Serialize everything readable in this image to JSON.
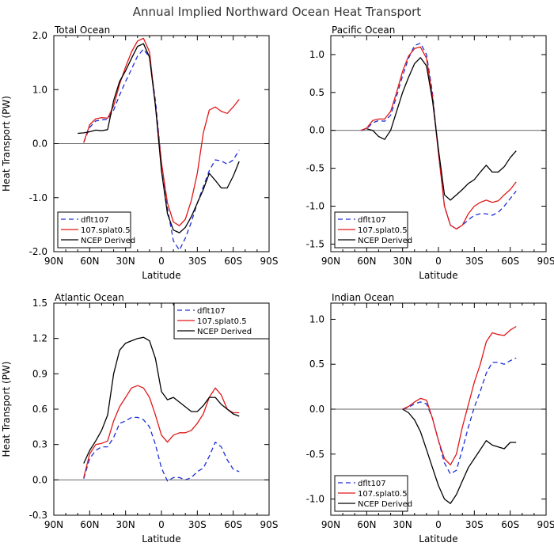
{
  "figure": {
    "title": "Annual Implied Northward Ocean Heat Transport"
  },
  "colors": {
    "dflt107": "#1f2fd8",
    "splat": "#e01818",
    "ncep": "#000000",
    "zero_line": "#666666"
  },
  "chart_data": [
    {
      "type": "line",
      "title": "Total Ocean",
      "xlabel": "Latitude",
      "ylabel": "Heat Transport (PW)",
      "xlim": [
        90,
        -90
      ],
      "ylim": [
        -2.0,
        2.0
      ],
      "x_ticks": [
        90,
        60,
        30,
        0,
        -30,
        -60,
        -90
      ],
      "x_tick_labels": [
        "90N",
        "60N",
        "30N",
        "0",
        "30S",
        "60S",
        "90S"
      ],
      "y_ticks": [
        -2.0,
        -1.0,
        0.0,
        1.0,
        2.0
      ],
      "y_tick_labels": [
        "-2.0",
        "-1.0",
        "0.0",
        "1.0",
        "2.0"
      ],
      "reference_line": 0,
      "legend": {
        "placement": "bottom-left"
      },
      "series": [
        {
          "name": "dflt107",
          "style": "dashed",
          "x": [
            65,
            60,
            55,
            50,
            45,
            40,
            35,
            30,
            25,
            20,
            15,
            10,
            5,
            0,
            -5,
            -10,
            -15,
            -20,
            -25,
            -30,
            -35,
            -40,
            -45,
            -50,
            -55,
            -60,
            -65
          ],
          "y": [
            0.02,
            0.3,
            0.42,
            0.44,
            0.45,
            0.62,
            0.9,
            1.15,
            1.38,
            1.62,
            1.75,
            1.6,
            0.8,
            -0.35,
            -1.2,
            -1.8,
            -1.97,
            -1.75,
            -1.45,
            -1.1,
            -0.8,
            -0.5,
            -0.3,
            -0.32,
            -0.38,
            -0.3,
            -0.12
          ]
        },
        {
          "name": "107.splat0.5",
          "style": "solid",
          "x": [
            65,
            60,
            55,
            50,
            45,
            40,
            35,
            30,
            25,
            20,
            15,
            10,
            5,
            0,
            -5,
            -10,
            -15,
            -20,
            -25,
            -30,
            -35,
            -40,
            -45,
            -50,
            -55,
            -60,
            -65
          ],
          "y": [
            0.02,
            0.35,
            0.46,
            0.48,
            0.47,
            0.7,
            1.1,
            1.42,
            1.7,
            1.9,
            1.95,
            1.7,
            0.7,
            -0.35,
            -1.1,
            -1.45,
            -1.52,
            -1.4,
            -1.05,
            -0.55,
            0.2,
            0.62,
            0.68,
            0.6,
            0.56,
            0.68,
            0.82
          ]
        },
        {
          "name": "NCEP Derived",
          "style": "solid",
          "x": [
            70,
            65,
            60,
            55,
            50,
            45,
            40,
            35,
            30,
            25,
            20,
            15,
            10,
            5,
            0,
            -5,
            -10,
            -15,
            -20,
            -25,
            -30,
            -35,
            -40,
            -45,
            -50,
            -55,
            -60,
            -65
          ],
          "y": [
            0.19,
            0.2,
            0.22,
            0.25,
            0.24,
            0.26,
            0.8,
            1.15,
            1.35,
            1.58,
            1.8,
            1.85,
            1.6,
            0.7,
            -0.5,
            -1.3,
            -1.6,
            -1.65,
            -1.55,
            -1.35,
            -1.1,
            -0.85,
            -0.55,
            -0.68,
            -0.82,
            -0.82,
            -0.6,
            -0.33
          ]
        }
      ]
    },
    {
      "type": "line",
      "title": "Pacific Ocean",
      "xlabel": "Latitude",
      "ylabel": "",
      "xlim": [
        90,
        -90
      ],
      "ylim": [
        -1.6,
        1.25
      ],
      "x_ticks": [
        90,
        60,
        30,
        0,
        -30,
        -60,
        -90
      ],
      "x_tick_labels": [
        "90N",
        "60N",
        "30N",
        "0",
        "30S",
        "60S",
        "90S"
      ],
      "y_ticks": [
        -1.5,
        -1.0,
        -0.5,
        0.0,
        0.5,
        1.0
      ],
      "y_tick_labels": [
        "-1.5",
        "-1.0",
        "-0.5",
        "0.0",
        "0.5",
        "1.0"
      ],
      "reference_line": 0,
      "legend": {
        "placement": "bottom-left"
      },
      "series": [
        {
          "name": "dflt107",
          "style": "dashed",
          "x": [
            65,
            60,
            55,
            50,
            45,
            40,
            35,
            30,
            25,
            20,
            15,
            10,
            5,
            0,
            -5,
            -10,
            -15,
            -20,
            -25,
            -30,
            -35,
            -40,
            -45,
            -50,
            -55,
            -60,
            -65
          ],
          "y": [
            0.0,
            0.02,
            0.1,
            0.13,
            0.12,
            0.2,
            0.45,
            0.72,
            0.95,
            1.12,
            1.15,
            1.0,
            0.5,
            -0.3,
            -1.0,
            -1.25,
            -1.3,
            -1.25,
            -1.18,
            -1.12,
            -1.1,
            -1.1,
            -1.12,
            -1.08,
            -1.0,
            -0.9,
            -0.8
          ]
        },
        {
          "name": "107.splat0.5",
          "style": "solid",
          "x": [
            65,
            60,
            55,
            50,
            45,
            40,
            35,
            30,
            25,
            20,
            15,
            10,
            5,
            0,
            -5,
            -10,
            -15,
            -20,
            -25,
            -30,
            -35,
            -40,
            -45,
            -50,
            -55,
            -60,
            -65
          ],
          "y": [
            0.0,
            0.03,
            0.13,
            0.15,
            0.15,
            0.25,
            0.5,
            0.78,
            0.98,
            1.08,
            1.1,
            0.95,
            0.45,
            -0.3,
            -1.0,
            -1.25,
            -1.3,
            -1.25,
            -1.1,
            -1.0,
            -0.95,
            -0.92,
            -0.95,
            -0.93,
            -0.85,
            -0.78,
            -0.68
          ]
        },
        {
          "name": "NCEP Derived",
          "style": "solid",
          "x": [
            60,
            55,
            50,
            45,
            40,
            35,
            30,
            25,
            20,
            15,
            10,
            5,
            0,
            -5,
            -10,
            -15,
            -20,
            -25,
            -30,
            -35,
            -40,
            -45,
            -50,
            -55,
            -60,
            -65
          ],
          "y": [
            0.02,
            0.0,
            -0.08,
            -0.12,
            0.0,
            0.25,
            0.5,
            0.7,
            0.88,
            0.96,
            0.85,
            0.4,
            -0.25,
            -0.85,
            -0.92,
            -0.85,
            -0.78,
            -0.7,
            -0.65,
            -0.55,
            -0.46,
            -0.55,
            -0.55,
            -0.48,
            -0.36,
            -0.27
          ]
        }
      ]
    },
    {
      "type": "line",
      "title": "Atlantic Ocean",
      "xlabel": "Latitude",
      "ylabel": "Heat Transport (PW)",
      "xlim": [
        90,
        -90
      ],
      "ylim": [
        -0.3,
        1.5
      ],
      "x_ticks": [
        90,
        60,
        30,
        0,
        -30,
        -60,
        -90
      ],
      "x_tick_labels": [
        "90N",
        "60N",
        "30N",
        "0",
        "30S",
        "60S",
        "90S"
      ],
      "y_ticks": [
        -0.3,
        0.0,
        0.3,
        0.6,
        0.9,
        1.2,
        1.5
      ],
      "y_tick_labels": [
        "-0.3",
        "0.0",
        "0.3",
        "0.6",
        "0.9",
        "1.2",
        "1.5"
      ],
      "reference_line": 0,
      "legend": {
        "placement": "top-right"
      },
      "series": [
        {
          "name": "dflt107",
          "style": "dashed",
          "x": [
            65,
            60,
            55,
            50,
            45,
            40,
            35,
            30,
            25,
            20,
            15,
            10,
            5,
            0,
            -5,
            -10,
            -15,
            -20,
            -25,
            -30,
            -35,
            -40,
            -45,
            -50,
            -55,
            -60,
            -65
          ],
          "y": [
            0.01,
            0.18,
            0.25,
            0.28,
            0.28,
            0.36,
            0.48,
            0.5,
            0.53,
            0.53,
            0.51,
            0.45,
            0.3,
            0.1,
            -0.01,
            0.02,
            0.02,
            0.0,
            0.02,
            0.07,
            0.1,
            0.2,
            0.32,
            0.28,
            0.17,
            0.09,
            0.07
          ]
        },
        {
          "name": "107.splat0.5",
          "style": "solid",
          "x": [
            65,
            60,
            55,
            50,
            45,
            40,
            35,
            30,
            25,
            20,
            15,
            10,
            5,
            0,
            -5,
            -10,
            -15,
            -20,
            -25,
            -30,
            -35,
            -40,
            -45,
            -50,
            -55,
            -60,
            -65
          ],
          "y": [
            0.02,
            0.22,
            0.3,
            0.31,
            0.33,
            0.5,
            0.62,
            0.7,
            0.78,
            0.8,
            0.78,
            0.7,
            0.55,
            0.38,
            0.32,
            0.38,
            0.4,
            0.4,
            0.42,
            0.48,
            0.56,
            0.7,
            0.78,
            0.72,
            0.6,
            0.57,
            0.57
          ]
        },
        {
          "name": "NCEP Derived",
          "style": "solid",
          "x": [
            65,
            60,
            55,
            50,
            45,
            40,
            35,
            30,
            25,
            20,
            15,
            10,
            5,
            0,
            -5,
            -10,
            -15,
            -20,
            -25,
            -30,
            -35,
            -40,
            -45,
            -50,
            -55,
            -60,
            -65
          ],
          "y": [
            0.14,
            0.25,
            0.33,
            0.42,
            0.55,
            0.9,
            1.1,
            1.16,
            1.18,
            1.2,
            1.21,
            1.18,
            1.03,
            0.75,
            0.68,
            0.7,
            0.66,
            0.62,
            0.58,
            0.58,
            0.63,
            0.7,
            0.7,
            0.64,
            0.6,
            0.56,
            0.54
          ]
        }
      ]
    },
    {
      "type": "line",
      "title": "Indian Ocean",
      "xlabel": "Latitude",
      "ylabel": "",
      "xlim": [
        90,
        -90
      ],
      "ylim": [
        -1.18,
        1.18
      ],
      "x_ticks": [
        90,
        60,
        30,
        0,
        -30,
        -60,
        -90
      ],
      "x_tick_labels": [
        "90N",
        "60N",
        "30N",
        "0",
        "30S",
        "60S",
        "90S"
      ],
      "y_ticks": [
        -1.0,
        -0.5,
        0.0,
        0.5,
        1.0
      ],
      "y_tick_labels": [
        "-1.0",
        "-0.5",
        "0.0",
        "0.5",
        "1.0"
      ],
      "reference_line": 0,
      "legend": {
        "placement": "bottom-left"
      },
      "series": [
        {
          "name": "dflt107",
          "style": "dashed",
          "x": [
            30,
            25,
            20,
            15,
            10,
            5,
            0,
            -5,
            -10,
            -15,
            -20,
            -25,
            -30,
            -35,
            -40,
            -45,
            -50,
            -55,
            -60,
            -65
          ],
          "y": [
            0.0,
            0.02,
            0.06,
            0.08,
            0.06,
            -0.1,
            -0.35,
            -0.6,
            -0.72,
            -0.68,
            -0.45,
            -0.2,
            0.02,
            0.2,
            0.4,
            0.52,
            0.52,
            0.5,
            0.54,
            0.57
          ]
        },
        {
          "name": "107.splat0.5",
          "style": "solid",
          "x": [
            30,
            25,
            20,
            15,
            10,
            5,
            0,
            -5,
            -10,
            -15,
            -20,
            -25,
            -30,
            -35,
            -40,
            -45,
            -50,
            -55,
            -60,
            -65
          ],
          "y": [
            0.0,
            0.03,
            0.08,
            0.12,
            0.1,
            -0.1,
            -0.35,
            -0.55,
            -0.62,
            -0.5,
            -0.2,
            0.05,
            0.3,
            0.5,
            0.75,
            0.85,
            0.83,
            0.82,
            0.88,
            0.92
          ]
        },
        {
          "name": "NCEP Derived",
          "style": "solid",
          "x": [
            30,
            25,
            20,
            15,
            10,
            5,
            0,
            -5,
            -10,
            -15,
            -20,
            -25,
            -30,
            -35,
            -40,
            -45,
            -50,
            -55,
            -60,
            -65
          ],
          "y": [
            0.0,
            -0.04,
            -0.12,
            -0.25,
            -0.45,
            -0.65,
            -0.85,
            -1.0,
            -1.05,
            -0.95,
            -0.8,
            -0.65,
            -0.55,
            -0.45,
            -0.35,
            -0.4,
            -0.42,
            -0.44,
            -0.37,
            -0.37
          ]
        }
      ]
    }
  ]
}
